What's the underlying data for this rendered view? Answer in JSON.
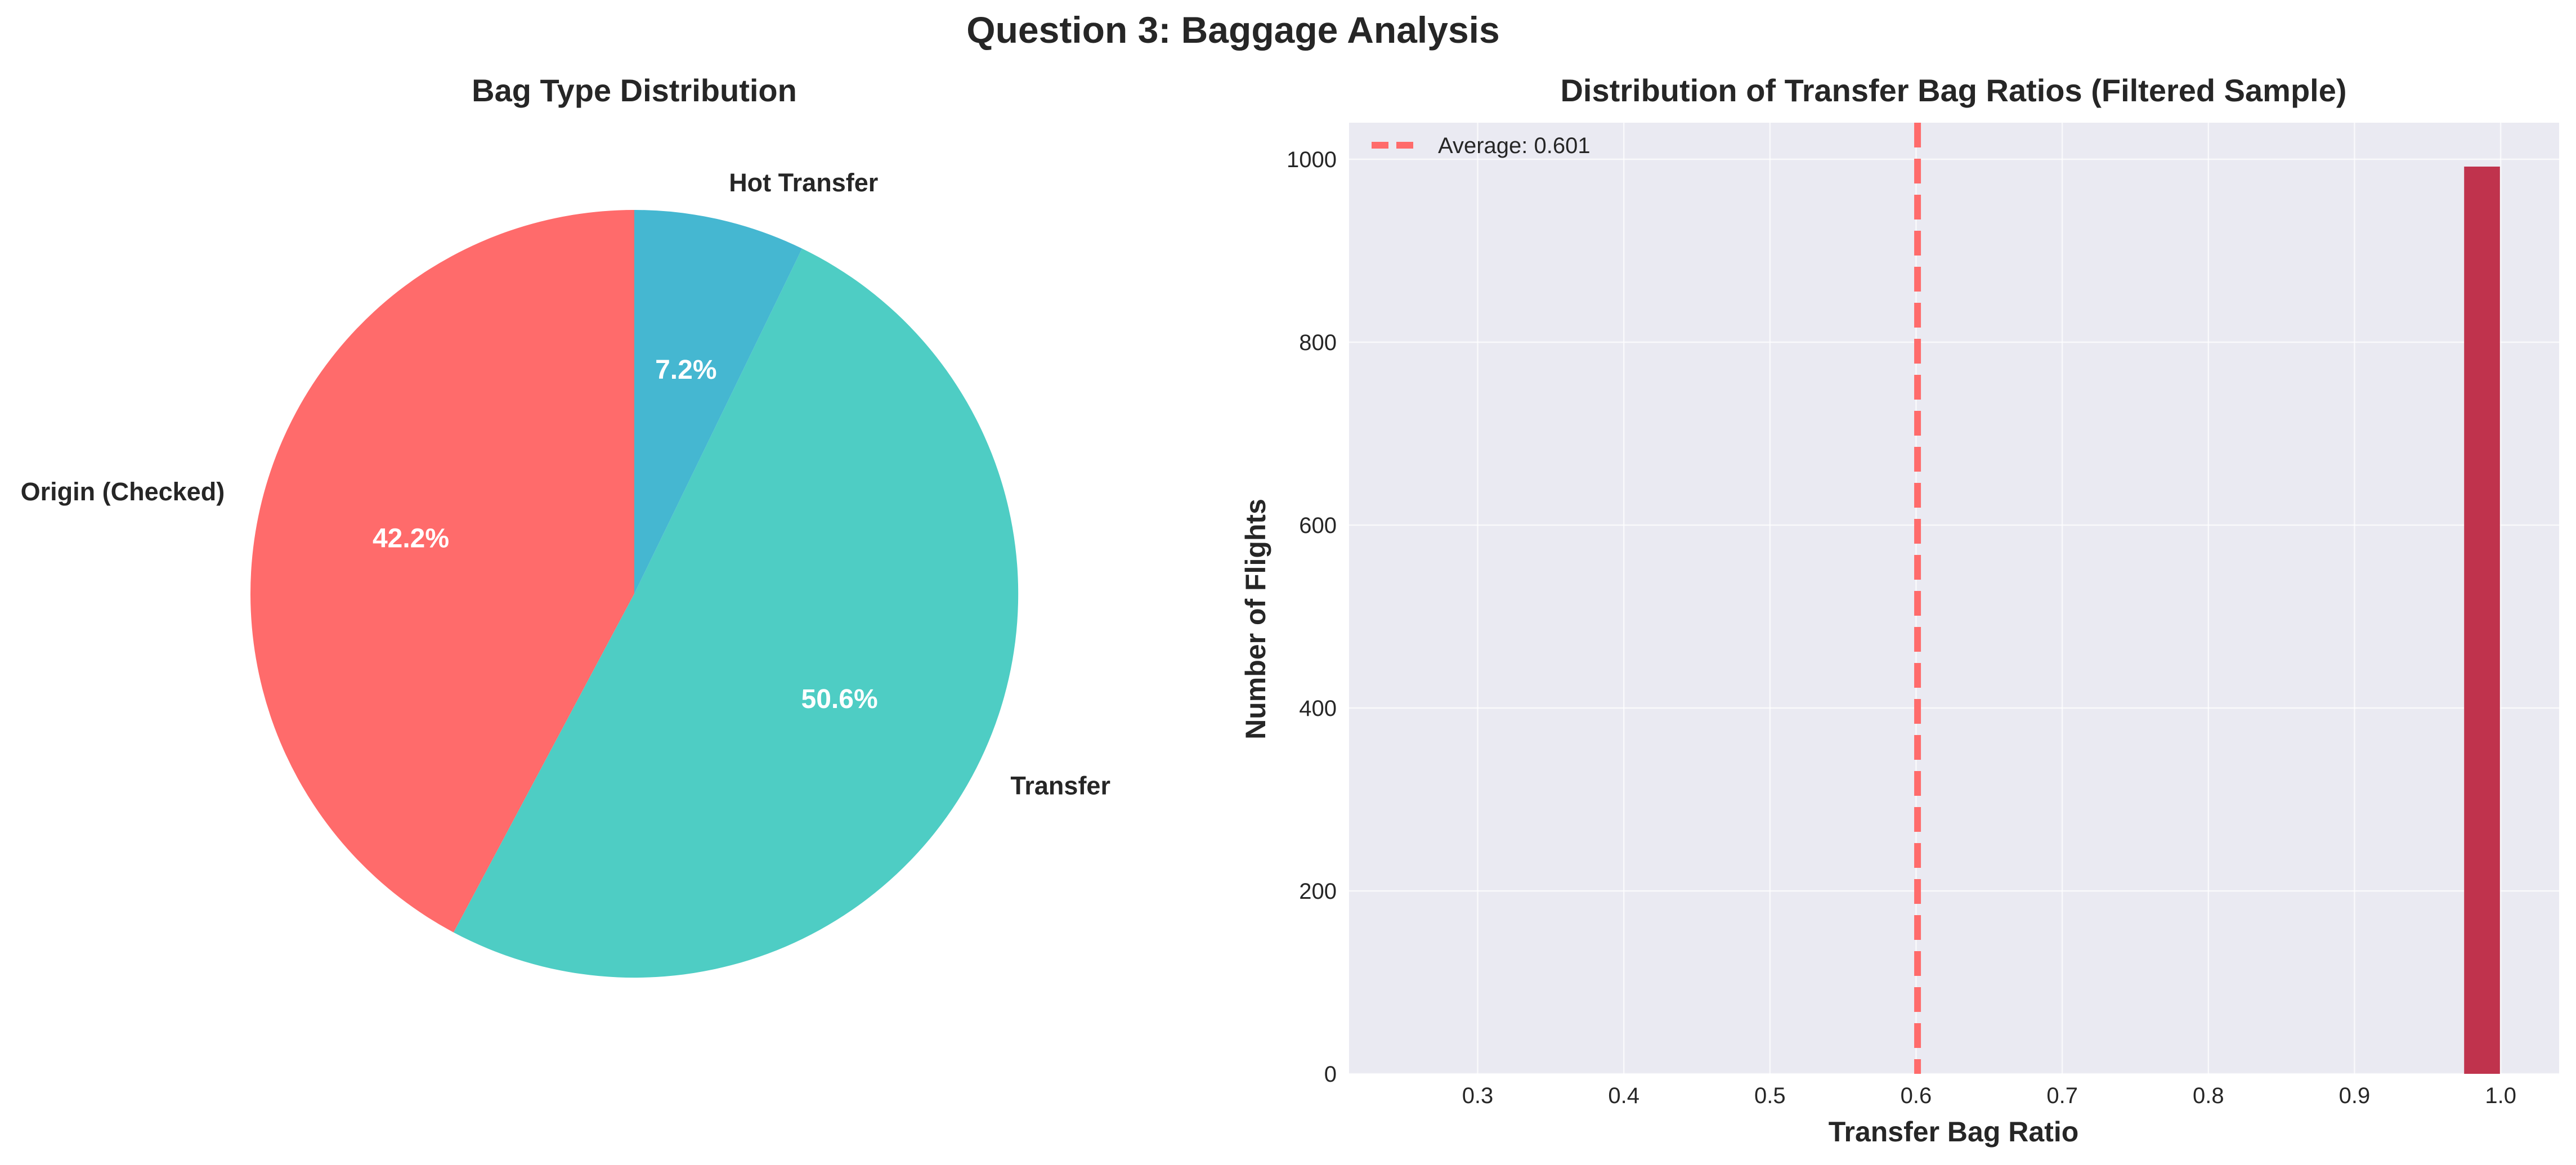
{
  "suptitle": "Question 3: Baggage Analysis",
  "chart_data": [
    {
      "type": "pie",
      "title": "Bag Type Distribution",
      "labels": [
        "Origin (Checked)",
        "Transfer",
        "Hot Transfer"
      ],
      "values": [
        42.2,
        50.6,
        7.2
      ],
      "pct_labels": [
        "42.2%",
        "50.6%",
        "7.2%"
      ],
      "colors": [
        "#ff6b6b",
        "#4ecdc4",
        "#45b7d1"
      ],
      "start_angle_deg": 90,
      "direction": "counterclockwise"
    },
    {
      "type": "bar",
      "subtype": "histogram",
      "title": "Distribution of Transfer Bag Ratios (Filtered Sample)",
      "xlabel": "Transfer Bag Ratio",
      "ylabel": "Number of Flights",
      "xlim": [
        0.212,
        1.04
      ],
      "ylim": [
        0,
        1040
      ],
      "xticks": [
        0.3,
        0.4,
        0.5,
        0.6,
        0.7,
        0.8,
        0.9,
        1.0
      ],
      "xtick_labels": [
        "0.3",
        "0.4",
        "0.5",
        "0.6",
        "0.7",
        "0.8",
        "0.9",
        "1.0"
      ],
      "yticks": [
        0,
        200,
        400,
        600,
        800,
        1000
      ],
      "ytick_labels": [
        "0",
        "200",
        "400",
        "600",
        "800",
        "1000"
      ],
      "bins": [
        {
          "x0": 0.975,
          "x1": 0.9995,
          "count": 992
        }
      ],
      "bar_color": "#c0334d",
      "average": {
        "value": 0.601,
        "label": "Average: 0.601",
        "color": "#ff6b6b",
        "style": "dashed"
      },
      "legend_position": "top-left",
      "grid": true,
      "background": "#eaeaf2"
    }
  ]
}
